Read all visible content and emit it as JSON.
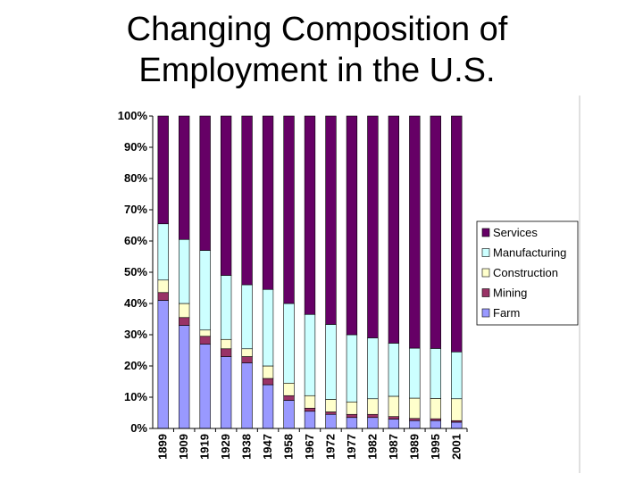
{
  "title": {
    "line1": "Changing Composition of",
    "line2": "Employment in the U.S."
  },
  "colors": {
    "Services": "#660066",
    "Manufacturing": "#ccffff",
    "Construction": "#ffffcc",
    "Mining": "#993366",
    "Farm": "#9999ff"
  },
  "chart_data": {
    "type": "bar",
    "stacked": true,
    "title": "",
    "xlabel": "",
    "ylabel": "",
    "ylim": [
      0,
      100
    ],
    "yticks": [
      "0%",
      "10%",
      "20%",
      "30%",
      "40%",
      "50%",
      "60%",
      "70%",
      "80%",
      "90%",
      "100%"
    ],
    "categories": [
      "1899",
      "1909",
      "1919",
      "1929",
      "1938",
      "1947",
      "1958",
      "1967",
      "1972",
      "1977",
      "1982",
      "1987",
      "1989",
      "1995",
      "2001"
    ],
    "legend_position": "right",
    "grid": false,
    "series": [
      {
        "name": "Farm",
        "values": [
          41,
          33,
          27,
          23,
          21,
          14,
          9,
          5.5,
          4.5,
          3.5,
          3.5,
          3,
          2.5,
          2.5,
          2
        ]
      },
      {
        "name": "Mining",
        "values": [
          2.5,
          2.5,
          2.5,
          2.5,
          2,
          2,
          1.5,
          1,
          0.8,
          1,
          1,
          0.8,
          0.7,
          0.6,
          0.5
        ]
      },
      {
        "name": "Construction",
        "values": [
          4,
          4.5,
          2,
          3,
          2.5,
          4,
          4,
          4,
          4,
          4,
          5,
          6.5,
          6.5,
          6.5,
          7
        ]
      },
      {
        "name": "Manufacturing",
        "values": [
          18,
          20.5,
          25.5,
          20.5,
          20.5,
          24.5,
          25.5,
          26,
          24,
          21.5,
          19.5,
          17,
          16,
          16,
          15
        ]
      },
      {
        "name": "Services",
        "values": [
          34.5,
          39.5,
          43,
          51,
          54,
          55.5,
          60,
          63.5,
          66.7,
          70,
          71,
          72.7,
          74.3,
          74.4,
          75.5
        ]
      }
    ]
  }
}
